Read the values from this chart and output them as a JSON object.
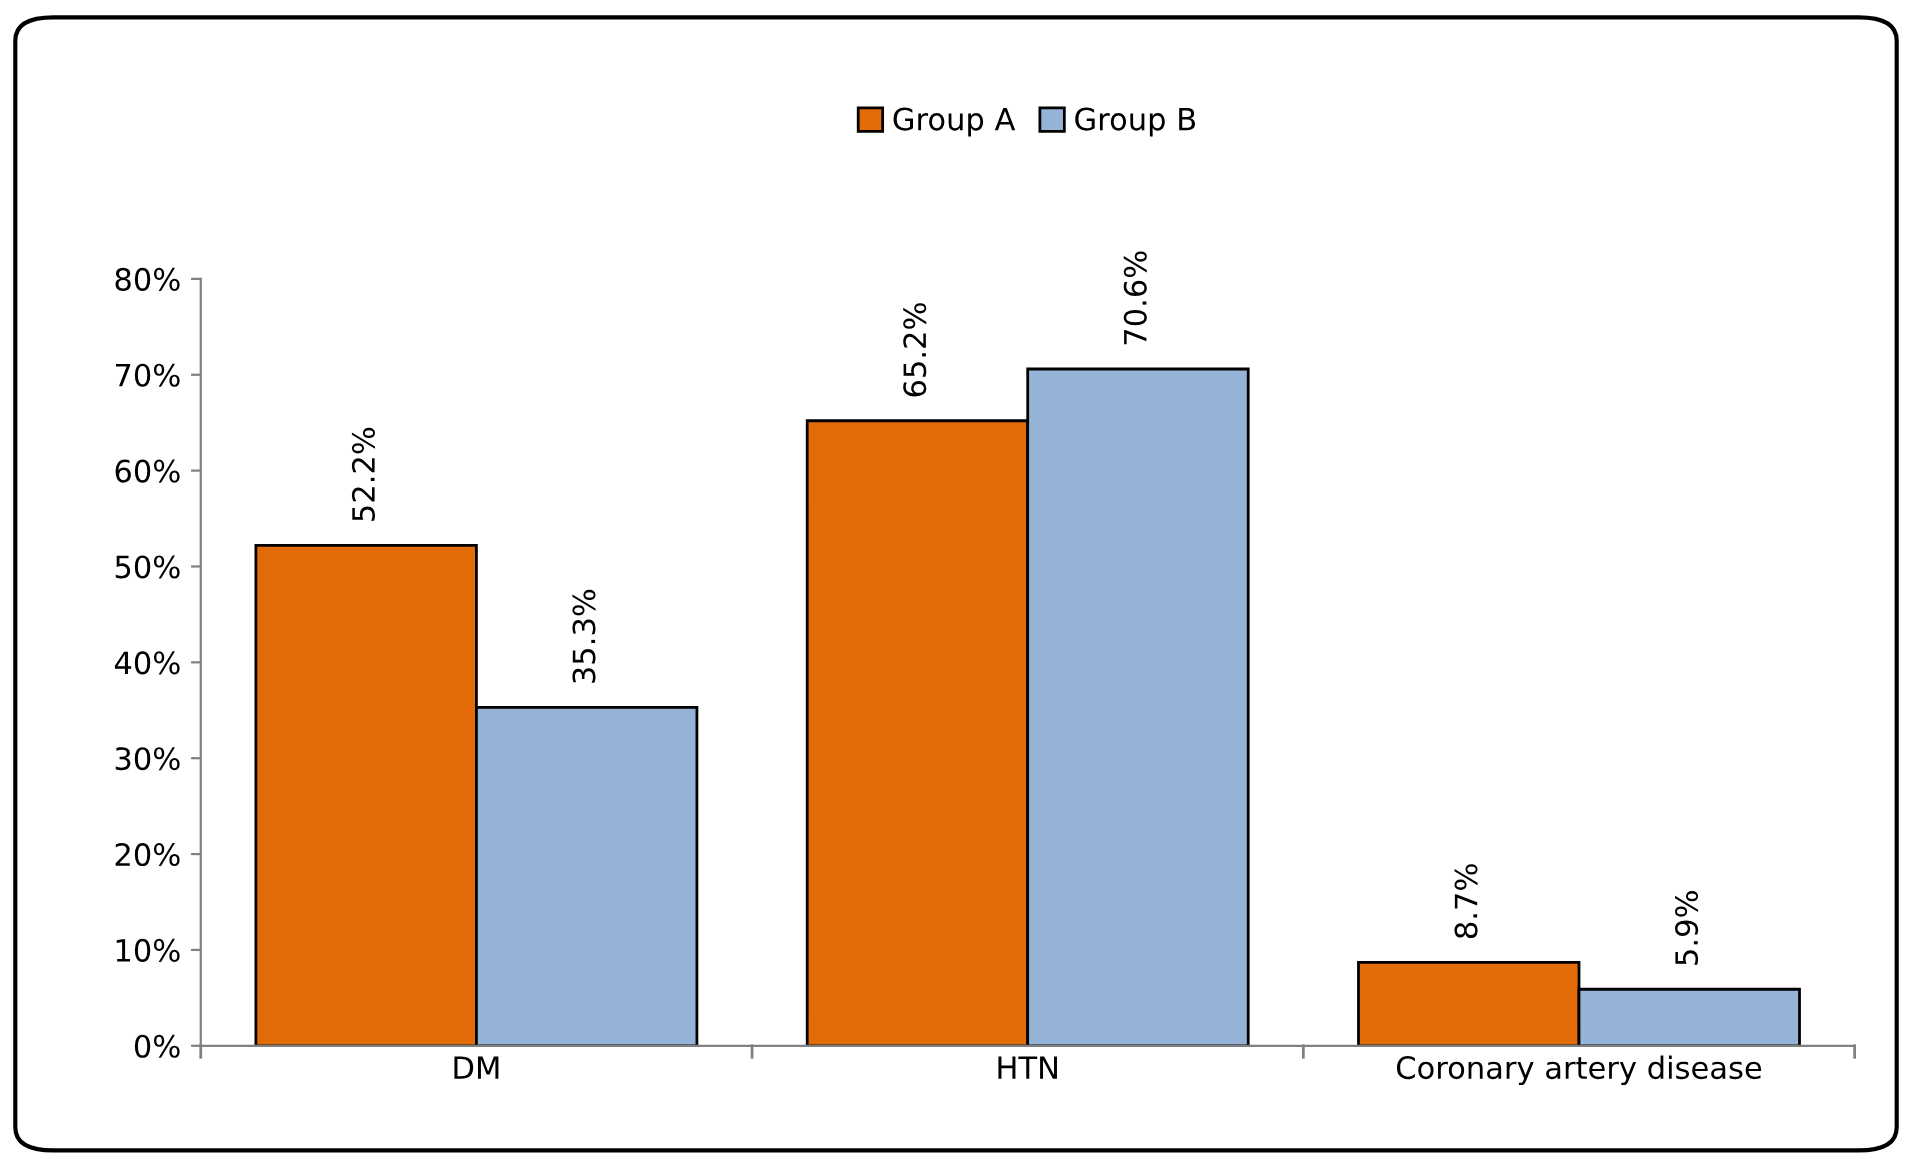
{
  "chart_data": {
    "type": "bar",
    "categories": [
      "DM",
      "HTN",
      "Coronary artery disease"
    ],
    "series": [
      {
        "name": "Group A",
        "color": "#e36c09",
        "values": [
          52.2,
          65.2,
          8.7
        ],
        "value_labels": [
          "52.2%",
          "65.2%",
          "8.7%"
        ]
      },
      {
        "name": "Group B",
        "color": "#95b3d7",
        "values": [
          35.3,
          70.6,
          5.9
        ],
        "value_labels": [
          "35.3%",
          "70.6%",
          "5.9%"
        ]
      }
    ],
    "ylim": [
      0,
      80
    ],
    "yticks": [
      {
        "value": 0,
        "label": "0%"
      },
      {
        "value": 10,
        "label": "10%"
      },
      {
        "value": 20,
        "label": "20%"
      },
      {
        "value": 30,
        "label": "30%"
      },
      {
        "value": 40,
        "label": "40%"
      },
      {
        "value": 50,
        "label": "50%"
      },
      {
        "value": 60,
        "label": "60%"
      },
      {
        "value": 70,
        "label": "70%"
      },
      {
        "value": 80,
        "label": "80%"
      }
    ],
    "grid": false,
    "legend": "top"
  }
}
